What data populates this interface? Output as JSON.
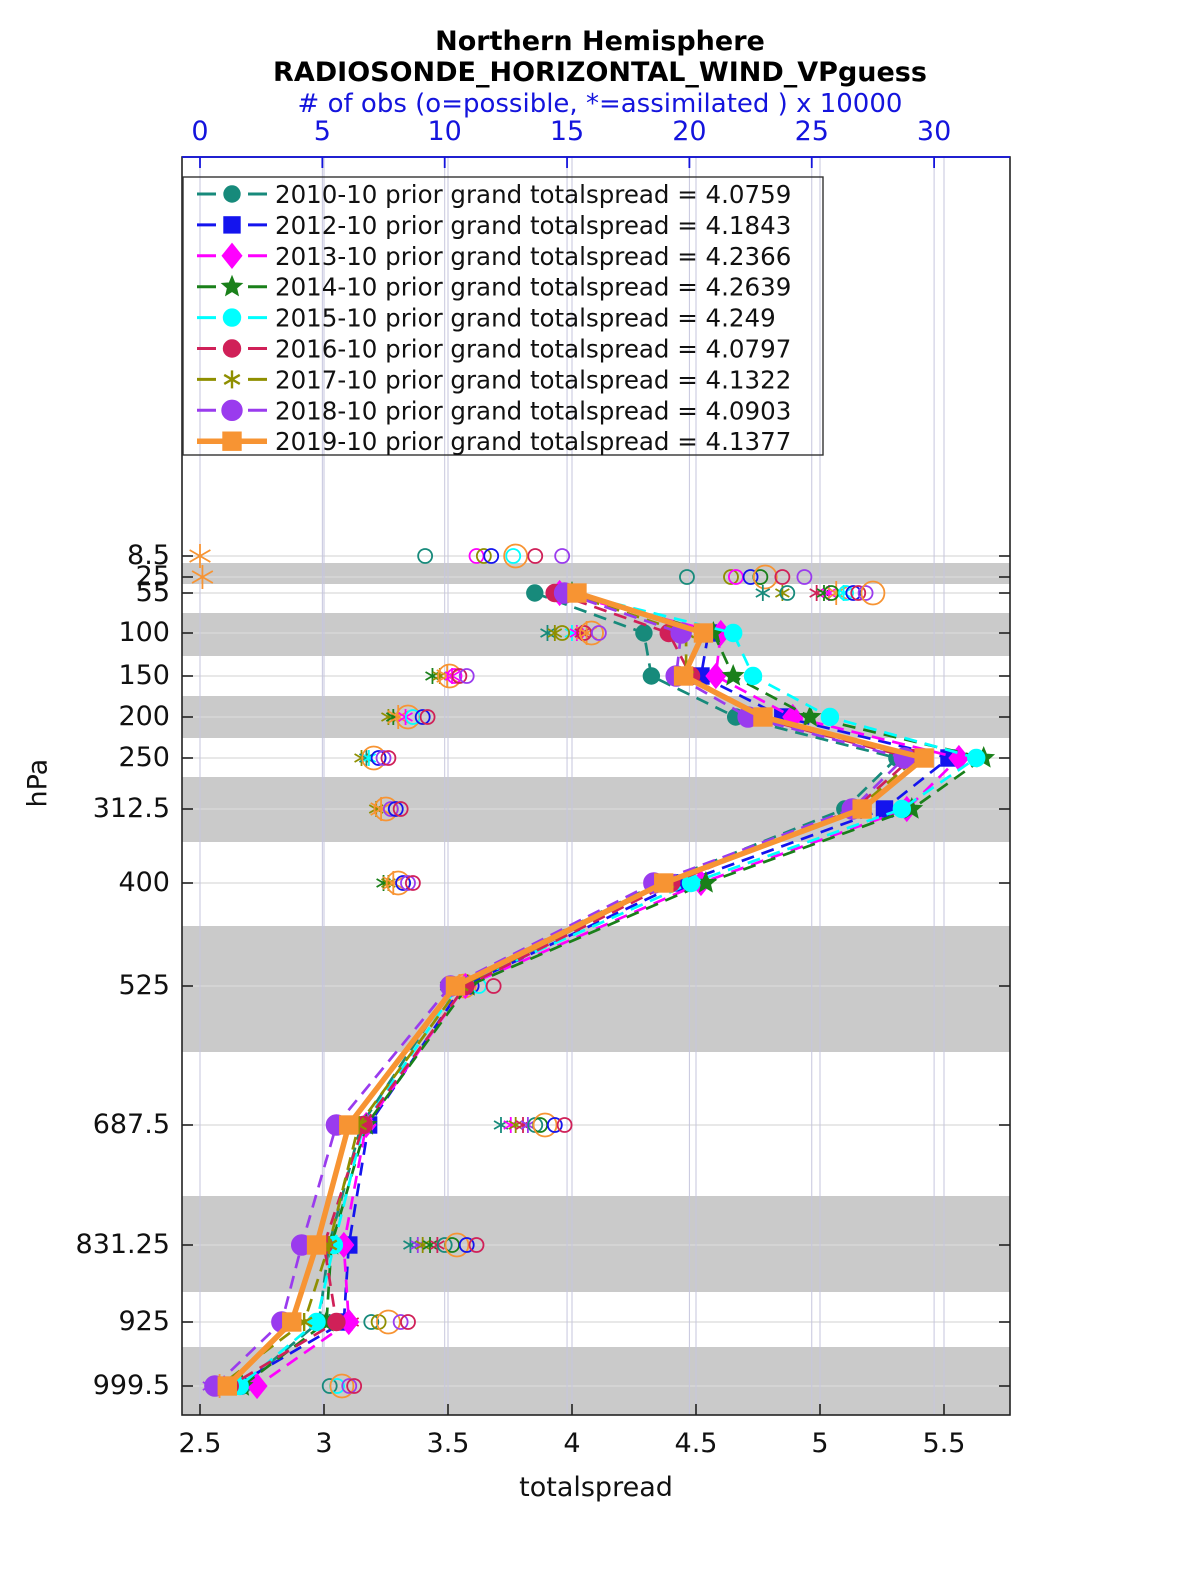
{
  "title": {
    "line1": "Northern Hemisphere",
    "line2": "RADIOSONDE_HORIZONTAL_WIND_VPguess"
  },
  "top_axis": {
    "label": "# of obs (o=possible, *=assimilated ) x 10000",
    "tick_labels": [
      "0",
      "5",
      "10",
      "15",
      "20",
      "25",
      "30"
    ],
    "color": "#1414dd"
  },
  "bottom_axis": {
    "label": "totalspread",
    "tick_labels": [
      "2.5",
      "3",
      "3.5",
      "4",
      "4.5",
      "5",
      "5.5"
    ]
  },
  "y_axis": {
    "label": "hPa",
    "tick_labels": [
      "8.5",
      "25",
      "55",
      "100",
      "150",
      "200",
      "250",
      "312.5",
      "400",
      "525",
      "687.5",
      "831.25",
      "925",
      "999.5"
    ]
  },
  "style": {
    "band_color": "#cacaca",
    "hgrid_color": "#d9d9d9",
    "vgrid_color": "#c6c6de",
    "axis_color": "#222222",
    "top_axis_color": "#1414dd"
  },
  "chart_data": {
    "type": "line",
    "title": "Northern Hemisphere RADIOSONDE_HORIZONTAL_WIND_VPguess",
    "xlabel": "totalspread",
    "ylabel": "hPa",
    "x2label": "# of obs (o=possible, *=assimilated ) x 10000",
    "xlim_bottom": [
      2.5,
      5.8
    ],
    "xlim_top": [
      0,
      33
    ],
    "levels_hpa": [
      55,
      100,
      150,
      200,
      250,
      312.5,
      400,
      525,
      687.5,
      831.25,
      925,
      999.5
    ],
    "all_levels_hpa": [
      8.5,
      25,
      55,
      100,
      150,
      200,
      250,
      312.5,
      400,
      525,
      687.5,
      831.25,
      925,
      999.5
    ],
    "series": [
      {
        "year": "2010-10",
        "label": "2010-10 prior grand totalspread = 4.0759",
        "grand_totalspread": 4.0759,
        "color": "#178a7b",
        "marker": "circle",
        "marker_size": 7.5,
        "line": "dashed",
        "totalspread": [
          3.85,
          4.29,
          4.32,
          4.66,
          5.31,
          5.1,
          4.35,
          3.52,
          3.15,
          3.02,
          2.98,
          2.67
        ]
      },
      {
        "year": "2012-10",
        "label": "2012-10 prior grand totalspread = 4.1843",
        "grand_totalspread": 4.1843,
        "color": "#1414ee",
        "marker": "square",
        "marker_size": 7.5,
        "line": "dashed",
        "totalspread": [
          3.99,
          4.55,
          4.52,
          4.85,
          5.52,
          5.26,
          4.44,
          3.56,
          3.18,
          3.1,
          3.08,
          2.64
        ]
      },
      {
        "year": "2013-10",
        "label": "2013-10 prior grand totalspread = 4.2366",
        "grand_totalspread": 4.2366,
        "color": "#ff00ff",
        "marker": "diamond",
        "marker_size": 9,
        "line": "dashed",
        "totalspread": [
          3.95,
          4.6,
          4.58,
          4.89,
          5.56,
          5.35,
          4.52,
          3.57,
          3.17,
          3.08,
          3.1,
          2.73
        ]
      },
      {
        "year": "2014-10",
        "label": "2014-10 prior grand totalspread = 4.2639",
        "grand_totalspread": 4.2639,
        "color": "#1a801a",
        "marker": "star",
        "marker_size": 10,
        "line": "dashed",
        "totalspread": [
          4.0,
          4.57,
          4.65,
          4.96,
          5.66,
          5.37,
          4.54,
          3.58,
          3.17,
          3.03,
          3.01,
          2.67
        ]
      },
      {
        "year": "2015-10",
        "label": "2015-10 prior grand totalspread = 4.249",
        "grand_totalspread": 4.249,
        "color": "#00ffff",
        "marker": "circle",
        "marker_size": 8,
        "line": "dashed",
        "totalspread": [
          4.0,
          4.65,
          4.73,
          5.04,
          5.63,
          5.33,
          4.48,
          3.54,
          3.16,
          3.04,
          2.97,
          2.66
        ]
      },
      {
        "year": "2016-10",
        "label": "2016-10 prior grand totalspread = 4.0797",
        "grand_totalspread": 4.0797,
        "color": "#d02058",
        "marker": "circle",
        "marker_size": 8,
        "line": "dashed",
        "totalspread": [
          3.93,
          4.39,
          4.48,
          4.74,
          5.37,
          5.14,
          4.4,
          3.57,
          3.16,
          3.0,
          3.05,
          2.62
        ]
      },
      {
        "year": "2017-10",
        "label": "2017-10 prior grand totalspread = 4.1322",
        "grand_totalspread": 4.1322,
        "color": "#8f8f00",
        "marker": "asterisk",
        "marker_size": 9,
        "line": "dashed",
        "totalspread": [
          3.98,
          4.46,
          4.46,
          4.76,
          5.39,
          5.15,
          4.38,
          3.55,
          3.14,
          3.02,
          2.92,
          2.58
        ]
      },
      {
        "year": "2018-10",
        "label": "2018-10 prior grand totalspread = 4.0903",
        "grand_totalspread": 4.0903,
        "color": "#9a3bee",
        "marker": "circle",
        "marker_size": 9.5,
        "line": "dashed",
        "totalspread": [
          3.97,
          4.44,
          4.42,
          4.71,
          5.34,
          5.13,
          4.33,
          3.51,
          3.05,
          2.91,
          2.83,
          2.56
        ]
      },
      {
        "year": "2019-10",
        "label": "2019-10 prior grand totalspread = 4.1377",
        "grand_totalspread": 4.1377,
        "color": "#f79433",
        "marker": "square",
        "marker_size": 8.5,
        "line": "solid",
        "totalspread": [
          4.02,
          4.53,
          4.45,
          4.77,
          5.42,
          5.17,
          4.37,
          3.53,
          3.1,
          2.97,
          2.87,
          2.61
        ]
      }
    ],
    "obs_counts_x10000": [
      {
        "level": "8.5",
        "assimilated": [
          [
            "2019-10",
            0.0
          ]
        ],
        "possible": [
          [
            "2010-10",
            9.2
          ],
          [
            "2013-10",
            11.3
          ],
          [
            "2017-10",
            11.6
          ],
          [
            "2012-10",
            11.9
          ],
          [
            "2015-10",
            12.8
          ],
          [
            "2019-10",
            12.9
          ],
          [
            "2016-10",
            13.7
          ],
          [
            "2018-10",
            14.8
          ]
        ]
      },
      {
        "level": "25",
        "assimilated": [
          [
            "2019-10",
            0.1
          ]
        ],
        "possible": [
          [
            "2010-10",
            19.9
          ],
          [
            "2017-10",
            21.7
          ],
          [
            "2013-10",
            21.9
          ],
          [
            "2012-10",
            22.5
          ],
          [
            "2014-10",
            22.9
          ],
          [
            "2019-10",
            23.1
          ],
          [
            "2016-10",
            23.8
          ],
          [
            "2018-10",
            24.7
          ]
        ]
      },
      {
        "level": "55",
        "assimilated": [
          [
            "2010-10",
            23.0
          ],
          [
            "2017-10",
            23.8
          ],
          [
            "2016-10",
            25.2
          ],
          [
            "2014-10",
            25.5
          ],
          [
            "2013-10",
            25.7
          ],
          [
            "2019-10",
            26.0
          ],
          [
            "2015-10",
            26.3
          ]
        ],
        "possible": [
          [
            "2010-10",
            24.0
          ],
          [
            "2014-10",
            25.8
          ],
          [
            "2015-10",
            26.4
          ],
          [
            "2012-10",
            26.7
          ],
          [
            "2016-10",
            26.9
          ],
          [
            "2018-10",
            27.2
          ],
          [
            "2019-10",
            27.5
          ]
        ]
      },
      {
        "level": "100",
        "assimilated": [
          [
            "2010-10",
            14.2
          ],
          [
            "2017-10",
            14.5
          ],
          [
            "2015-10",
            15.2
          ],
          [
            "2013-10",
            15.4
          ],
          [
            "2016-10",
            15.6
          ],
          [
            "2019-10",
            15.8
          ]
        ],
        "possible": [
          [
            "2017-10",
            14.8
          ],
          [
            "2016-10",
            15.7
          ],
          [
            "2019-10",
            16.0
          ],
          [
            "2018-10",
            16.3
          ]
        ]
      },
      {
        "level": "150",
        "assimilated": [
          [
            "2014-10",
            9.5
          ],
          [
            "2017-10",
            9.8
          ],
          [
            "2019-10",
            10.1
          ],
          [
            "2013-10",
            10.3
          ]
        ],
        "possible": [
          [
            "2019-10",
            10.2
          ],
          [
            "2013-10",
            10.4
          ],
          [
            "2016-10",
            10.6
          ],
          [
            "2018-10",
            10.9
          ]
        ]
      },
      {
        "level": "200",
        "assimilated": [
          [
            "2017-10",
            7.7
          ],
          [
            "2014-10",
            7.9
          ],
          [
            "2019-10",
            8.1
          ],
          [
            "2013-10",
            8.4
          ]
        ],
        "possible": [
          [
            "2019-10",
            8.5
          ],
          [
            "2015-10",
            8.7
          ],
          [
            "2012-10",
            9.1
          ],
          [
            "2016-10",
            9.3
          ]
        ]
      },
      {
        "level": "250",
        "assimilated": [
          [
            "2017-10",
            6.6
          ],
          [
            "2010-10",
            6.8
          ],
          [
            "2015-10",
            6.9
          ]
        ],
        "possible": [
          [
            "2019-10",
            7.1
          ],
          [
            "2012-10",
            7.3
          ],
          [
            "2018-10",
            7.5
          ],
          [
            "2016-10",
            7.7
          ]
        ]
      },
      {
        "level": "312.5",
        "assimilated": [
          [
            "2017-10",
            7.2
          ],
          [
            "2019-10",
            7.4
          ]
        ],
        "possible": [
          [
            "2019-10",
            7.6
          ],
          [
            "2018-10",
            7.8
          ],
          [
            "2012-10",
            8.0
          ],
          [
            "2016-10",
            8.2
          ]
        ]
      },
      {
        "level": "400",
        "assimilated": [
          [
            "2014-10",
            7.5
          ],
          [
            "2017-10",
            7.7
          ],
          [
            "2019-10",
            7.9
          ]
        ],
        "possible": [
          [
            "2019-10",
            8.1
          ],
          [
            "2012-10",
            8.3
          ],
          [
            "2018-10",
            8.5
          ],
          [
            "2016-10",
            8.7
          ]
        ]
      },
      {
        "level": "525",
        "assimilated": [
          [
            "2014-10",
            10.1
          ],
          [
            "2017-10",
            10.3
          ],
          [
            "2019-10",
            10.6
          ]
        ],
        "possible": [
          [
            "2019-10",
            10.8
          ],
          [
            "2012-10",
            11.1
          ],
          [
            "2015-10",
            11.4
          ],
          [
            "2016-10",
            12.0
          ]
        ]
      },
      {
        "level": "687.5",
        "assimilated": [
          [
            "2010-10",
            12.3
          ],
          [
            "2013-10",
            12.7
          ],
          [
            "2017-10",
            12.9
          ],
          [
            "2016-10",
            13.2
          ],
          [
            "2018-10",
            13.4
          ]
        ],
        "possible": [
          [
            "2010-10",
            13.7
          ],
          [
            "2014-10",
            13.9
          ],
          [
            "2019-10",
            14.1
          ],
          [
            "2012-10",
            14.5
          ],
          [
            "2016-10",
            14.9
          ]
        ]
      },
      {
        "level": "831.25",
        "assimilated": [
          [
            "2010-10",
            8.6
          ],
          [
            "2018-10",
            8.9
          ],
          [
            "2017-10",
            9.1
          ],
          [
            "2014-10",
            9.4
          ],
          [
            "2016-10",
            9.7
          ]
        ],
        "possible": [
          [
            "2010-10",
            10.0
          ],
          [
            "2014-10",
            10.3
          ],
          [
            "2019-10",
            10.5
          ],
          [
            "2012-10",
            10.9
          ],
          [
            "2016-10",
            11.3
          ]
        ]
      },
      {
        "level": "925",
        "assimilated": [
          [
            "2010-10",
            5.3
          ],
          [
            "2018-10",
            5.5
          ],
          [
            "2017-10",
            5.8
          ],
          [
            "2016-10",
            6.2
          ]
        ],
        "possible": [
          [
            "2010-10",
            7.0
          ],
          [
            "2017-10",
            7.3
          ],
          [
            "2019-10",
            7.7
          ],
          [
            "2018-10",
            8.2
          ],
          [
            "2016-10",
            8.5
          ]
        ]
      },
      {
        "level": "999.5",
        "assimilated": [
          [
            "2018-10",
            0.4
          ],
          [
            "2019-10",
            0.8
          ]
        ],
        "possible": [
          [
            "2010-10",
            5.3
          ],
          [
            "2015-10",
            5.6
          ],
          [
            "2019-10",
            5.8
          ],
          [
            "2018-10",
            6.1
          ],
          [
            "2016-10",
            6.3
          ]
        ]
      }
    ],
    "legend_position": "upper left",
    "grid": true
  }
}
